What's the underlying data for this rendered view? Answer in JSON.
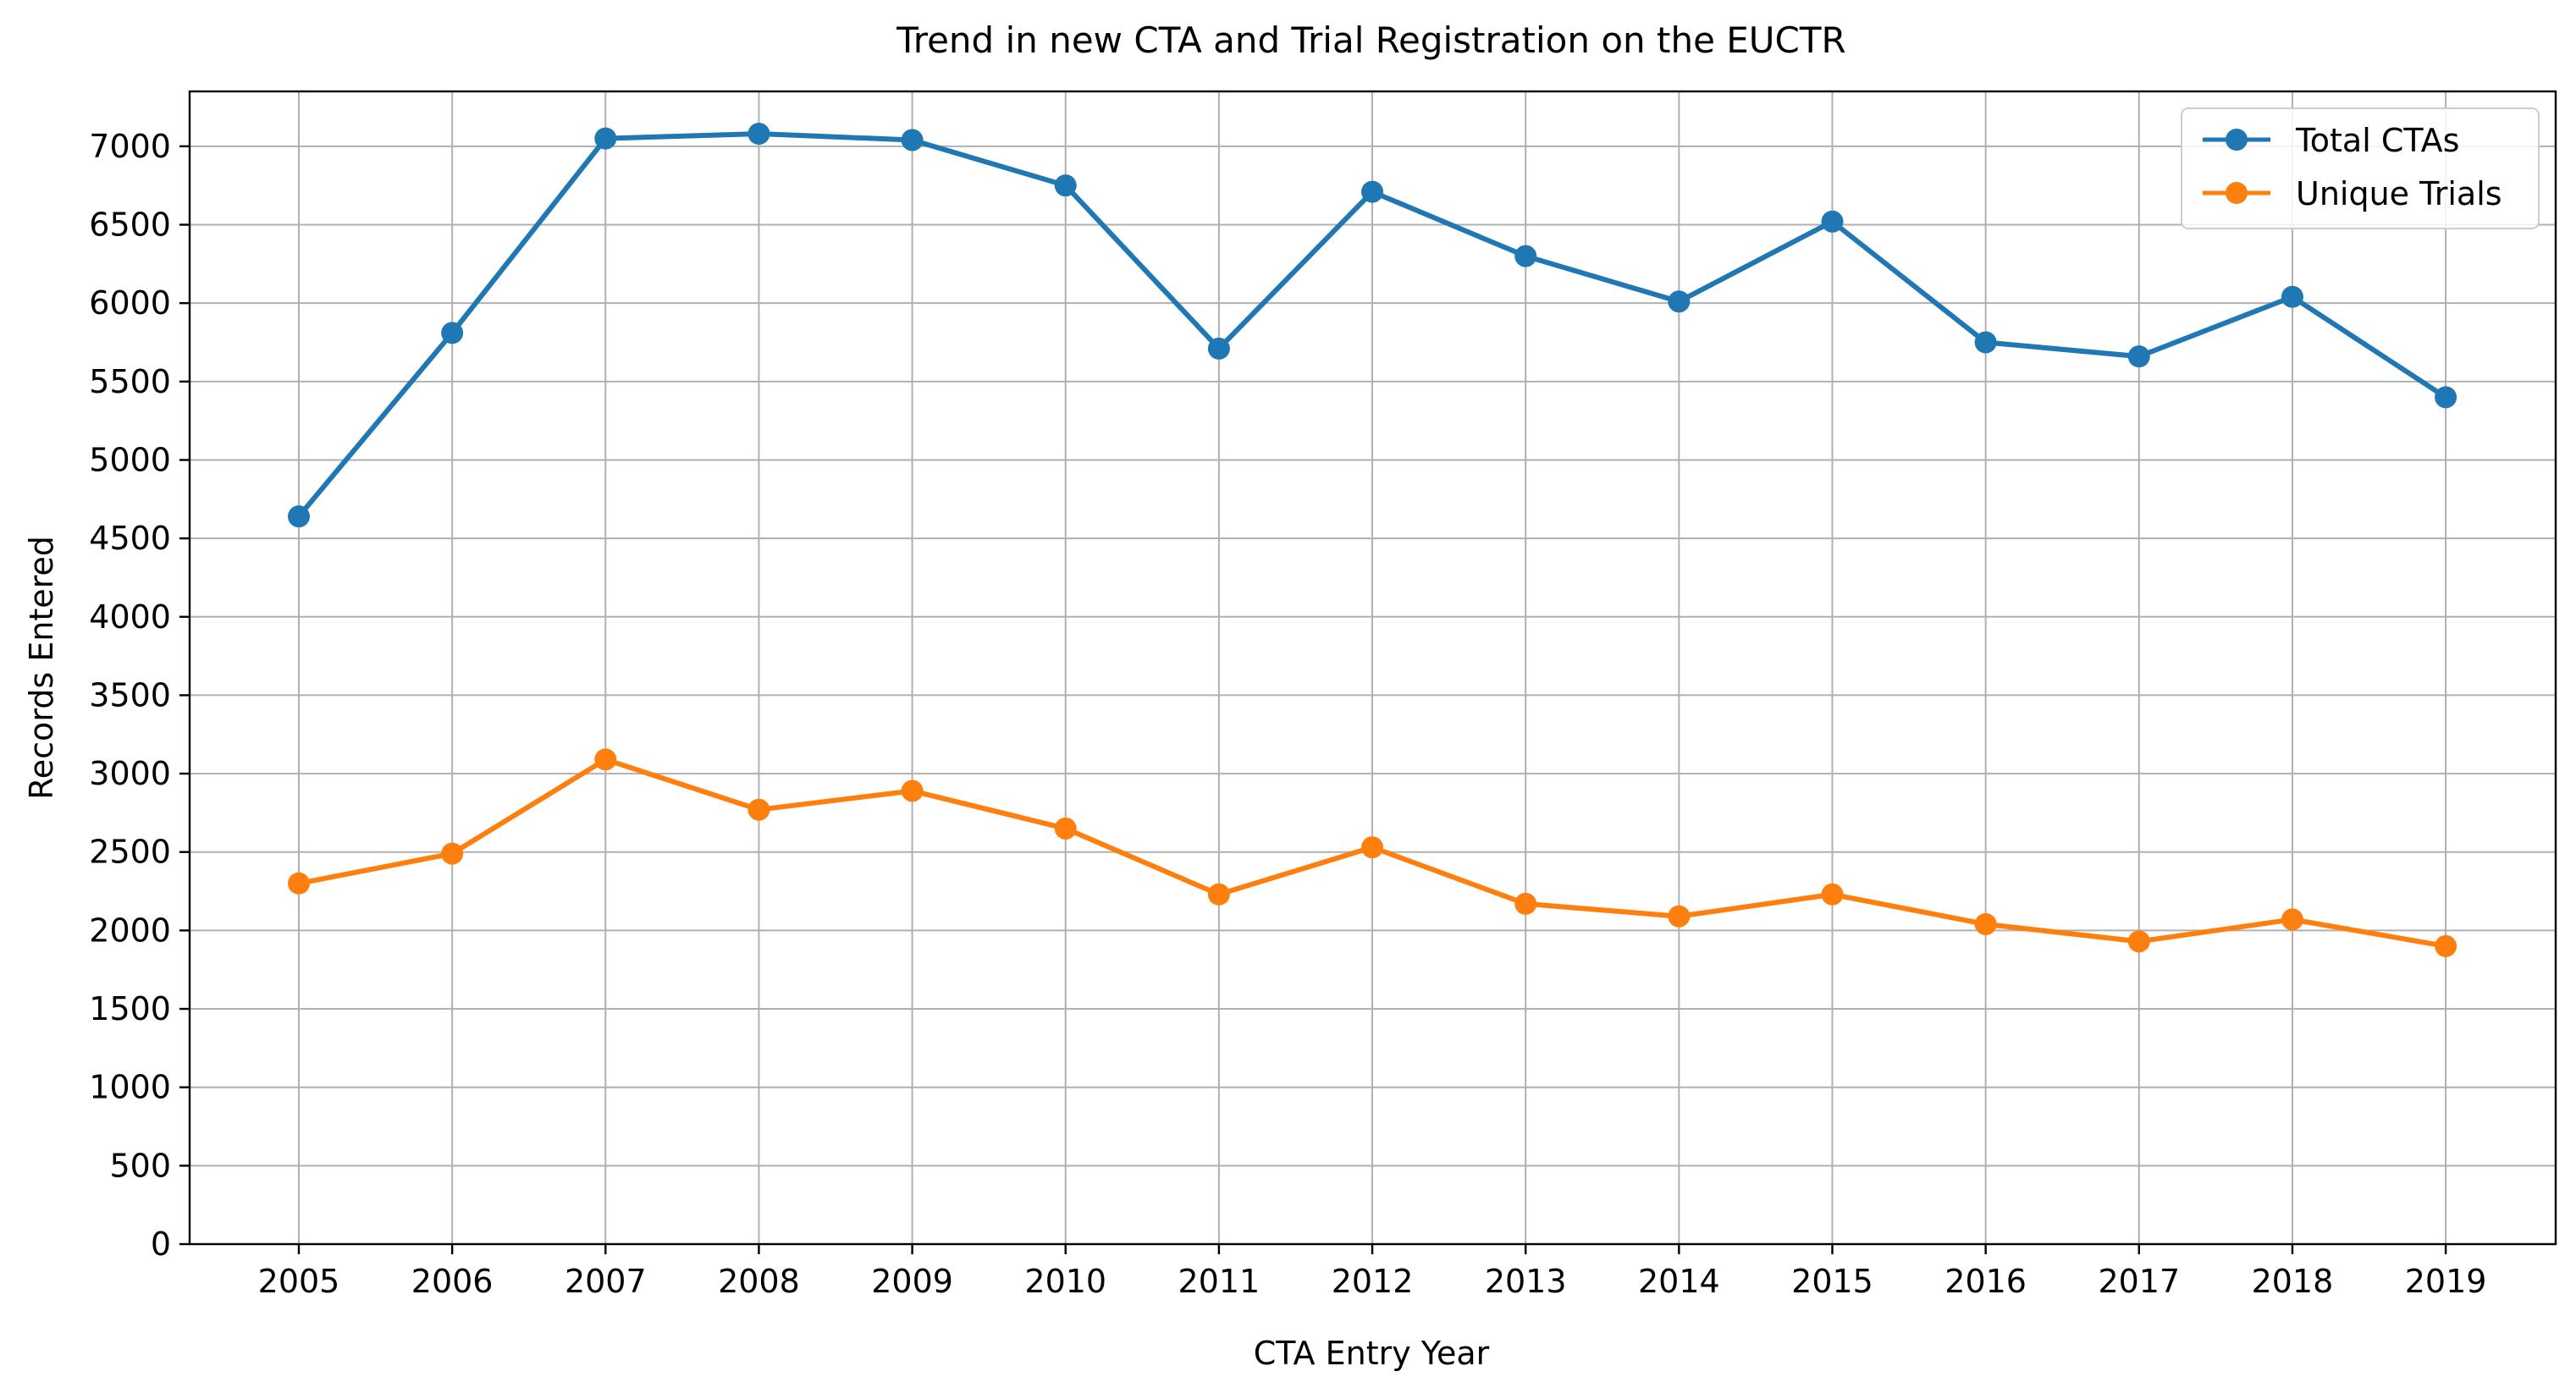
{
  "chart_data": {
    "type": "line",
    "title": "Trend in new CTA and Trial Registration on the EUCTR",
    "xlabel": "CTA Entry Year",
    "ylabel": "Records Entered",
    "x": [
      "2005",
      "2006",
      "2007",
      "2008",
      "2009",
      "2010",
      "2011",
      "2012",
      "2013",
      "2014",
      "2015",
      "2016",
      "2017",
      "2018",
      "2019"
    ],
    "y_ticks": [
      "0",
      "500",
      "1000",
      "1500",
      "2000",
      "2500",
      "3000",
      "3500",
      "4000",
      "4500",
      "5000",
      "5500",
      "6000",
      "6500",
      "7000"
    ],
    "ylim": [
      0,
      7350
    ],
    "grid": true,
    "legend_position": "top-right",
    "series": [
      {
        "name": "Total CTAs",
        "color": "#1f77b4",
        "marker": "circle",
        "values": [
          4640,
          5810,
          7050,
          7080,
          7040,
          6750,
          5710,
          6710,
          6300,
          6010,
          6520,
          5750,
          5660,
          6040,
          5400
        ]
      },
      {
        "name": "Unique Trials",
        "color": "#ff7f0e",
        "marker": "circle",
        "values": [
          2300,
          2490,
          3090,
          2770,
          2890,
          2650,
          2230,
          2530,
          2170,
          2090,
          2230,
          2040,
          1930,
          2070,
          1900
        ]
      }
    ]
  }
}
